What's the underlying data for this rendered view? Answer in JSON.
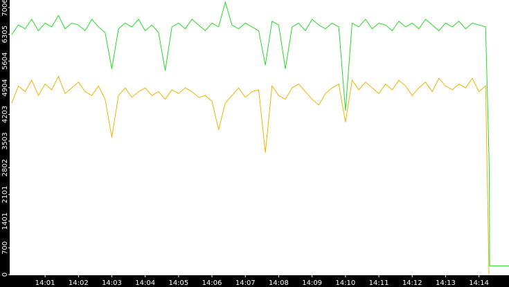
{
  "chart_data": {
    "type": "line",
    "x": [
      840.0,
      840.2,
      840.4,
      840.6,
      840.8,
      841.0,
      841.2,
      841.4,
      841.6,
      841.8,
      842.0,
      842.2,
      842.4,
      842.6,
      842.8,
      843.0,
      843.2,
      843.4,
      843.6,
      843.8,
      844.0,
      844.2,
      844.4,
      844.6,
      844.8,
      845.0,
      845.2,
      845.4,
      845.6,
      845.8,
      846.0,
      846.2,
      846.4,
      846.6,
      846.8,
      847.0,
      847.2,
      847.4,
      847.6,
      847.8,
      848.0,
      848.2,
      848.4,
      848.6,
      848.8,
      849.0,
      849.2,
      849.4,
      849.6,
      849.8,
      850.0,
      850.2,
      850.4,
      850.6,
      850.8,
      851.0,
      851.2,
      851.4,
      851.6,
      851.8,
      852.0,
      852.2,
      852.4,
      852.6,
      852.8,
      853.0,
      853.2,
      853.4,
      853.6,
      853.8,
      854.0,
      854.2,
      854.3,
      854.31,
      854.32,
      854.9
    ],
    "series": [
      {
        "color": "#22dd22",
        "values": [
          6300,
          6550,
          6450,
          6700,
          6400,
          6600,
          6500,
          6800,
          6450,
          6600,
          6550,
          6400,
          6700,
          6500,
          6350,
          5400,
          6450,
          6600,
          6500,
          6700,
          6400,
          6550,
          6350,
          5350,
          6500,
          6600,
          6450,
          6700,
          6550,
          6400,
          6600,
          6500,
          7150,
          6550,
          6450,
          6600,
          6500,
          6400,
          5500,
          6650,
          6550,
          5400,
          6500,
          6600,
          6400,
          6700,
          6550,
          6450,
          6600,
          6500,
          4300,
          6600,
          6500,
          6700,
          6450,
          6600,
          6550,
          6400,
          6650,
          6500,
          6600,
          6450,
          6700,
          6550,
          6400,
          6600,
          6500,
          6650,
          6450,
          6600,
          6550,
          6500,
          3100,
          2600,
          230,
          230
        ]
      },
      {
        "color": "#f0b400",
        "values": [
          4500,
          4950,
          4800,
          5100,
          4700,
          5000,
          4850,
          5200,
          4750,
          4900,
          5050,
          4800,
          4700,
          4950,
          4600,
          3600,
          4700,
          4900,
          4650,
          4800,
          4900,
          4700,
          4800,
          4600,
          4850,
          4750,
          4900,
          4800,
          4650,
          4700,
          4550,
          3800,
          4500,
          4700,
          4900,
          4650,
          4800,
          4850,
          3200,
          4950,
          4700,
          4600,
          4900,
          5000,
          4800,
          4600,
          4450,
          4750,
          4900,
          5000,
          4000,
          5100,
          4850,
          5050,
          4900,
          4750,
          5000,
          4850,
          5100,
          4950,
          4700,
          4900,
          5050,
          4800,
          5150,
          4950,
          4850,
          5000,
          4900,
          5150,
          4800,
          4950,
          0,
          null,
          null,
          null
        ]
      }
    ],
    "xlim": [
      839.94,
      854.9
    ],
    "xticks": [
      {
        "value": 841,
        "label": "14:01"
      },
      {
        "value": 842,
        "label": "14:02"
      },
      {
        "value": 843,
        "label": "14:03"
      },
      {
        "value": 844,
        "label": "14:04"
      },
      {
        "value": 845,
        "label": "14:05"
      },
      {
        "value": 846,
        "label": "14:06"
      },
      {
        "value": 847,
        "label": "14:07"
      },
      {
        "value": 848,
        "label": "14:08"
      },
      {
        "value": 849,
        "label": "14:09"
      },
      {
        "value": 850,
        "label": "14:10"
      },
      {
        "value": 851,
        "label": "14:11"
      },
      {
        "value": 852,
        "label": "14:12"
      },
      {
        "value": 853,
        "label": "14:13"
      },
      {
        "value": 854,
        "label": "14:14"
      }
    ],
    "ylim": [
      0,
      7206
    ],
    "yticks": [
      0,
      700,
      1401,
      2101,
      2802,
      3503,
      4203,
      4904,
      5604,
      6305,
      7006
    ]
  }
}
